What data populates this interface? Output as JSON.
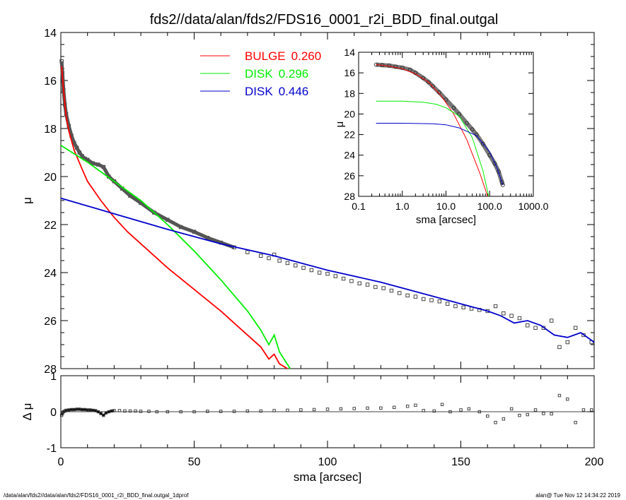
{
  "title": "fds2//data/alan/fds2/FDS16_0001_r2i_BDD_final.outgal",
  "footer": {
    "left": "/data/alan/fds2//data/alan/fds2/FDS16_0001_r2i_BDD_final.outgal_1dprof",
    "right": "alan@  Tue Nov 12 14:34:22 2019"
  },
  "colors": {
    "bulge": "#ff0000",
    "disk1": "#00ee00",
    "disk2": "#0000cc",
    "data": "#000000"
  },
  "chart_data": [
    {
      "id": "main",
      "type": "line",
      "xlabel": "sma [arcsec]",
      "ylabel": "μ",
      "xlim": [
        0,
        200
      ],
      "ylim": [
        28,
        14
      ],
      "xticks": [
        0,
        50,
        100,
        150,
        200
      ],
      "yticks": [
        14,
        16,
        18,
        20,
        22,
        24,
        26,
        28
      ],
      "legend": {
        "placement": "top-center"
      },
      "series": [
        {
          "name": "BULGE",
          "value": "0.260",
          "color": "#ff0000",
          "x": [
            0.3,
            1,
            2,
            3,
            5,
            8,
            10,
            15,
            20,
            25,
            30,
            40,
            50,
            60,
            70,
            75,
            78,
            80,
            82,
            85
          ],
          "y": [
            15.4,
            16.4,
            17.5,
            18.1,
            18.9,
            19.7,
            20.2,
            21.0,
            21.7,
            22.3,
            22.8,
            23.8,
            24.7,
            25.6,
            26.6,
            27.1,
            27.6,
            27.4,
            27.8,
            28.0
          ]
        },
        {
          "name": "DISK",
          "value": "0.296",
          "color": "#00ee00",
          "x": [
            0,
            5,
            10,
            20,
            30,
            40,
            50,
            60,
            70,
            75,
            78,
            80,
            82,
            86
          ],
          "y": [
            18.7,
            19.05,
            19.4,
            20.2,
            21.0,
            22.0,
            23.1,
            24.3,
            25.6,
            26.4,
            27.0,
            26.6,
            27.3,
            28.0
          ]
        },
        {
          "name": "DISK",
          "value": "0.446",
          "color": "#0000cc",
          "x": [
            0,
            20,
            40,
            60,
            80,
            100,
            120,
            140,
            150,
            160,
            165,
            170,
            175,
            180,
            185,
            190,
            195,
            200
          ],
          "y": [
            20.9,
            21.55,
            22.2,
            22.8,
            23.3,
            23.9,
            24.4,
            25.0,
            25.3,
            25.6,
            25.8,
            26.1,
            26.0,
            26.2,
            26.6,
            26.7,
            26.5,
            26.9
          ]
        }
      ],
      "points": {
        "x": [
          0.3,
          0.6,
          1,
          1.5,
          2,
          3,
          4,
          5,
          6,
          7,
          8,
          9,
          10,
          12,
          14,
          16,
          18,
          20,
          23,
          26,
          30,
          35,
          40,
          45,
          50,
          55,
          60,
          65,
          70,
          75,
          78,
          80,
          82,
          85,
          88,
          91,
          94,
          97,
          100,
          103,
          106,
          109,
          112,
          115,
          118,
          121,
          124,
          127,
          130,
          133,
          136,
          139,
          142,
          145,
          148,
          151,
          154,
          157,
          160,
          163,
          166,
          169,
          172,
          175,
          178,
          181,
          184,
          187,
          190,
          193,
          196,
          199
        ],
        "y": [
          15.2,
          15.7,
          16.4,
          17.0,
          17.4,
          17.9,
          18.3,
          18.6,
          18.8,
          19.0,
          19.15,
          19.25,
          19.3,
          19.45,
          19.5,
          19.6,
          20.0,
          20.2,
          20.5,
          20.8,
          21.1,
          21.5,
          21.8,
          22.1,
          22.3,
          22.55,
          22.75,
          22.95,
          23.15,
          23.3,
          23.4,
          23.25,
          23.5,
          23.6,
          23.7,
          23.8,
          23.9,
          24.0,
          24.05,
          24.15,
          24.25,
          24.35,
          24.45,
          24.5,
          24.6,
          24.65,
          24.75,
          24.85,
          24.95,
          25.0,
          25.1,
          25.15,
          25.2,
          25.3,
          25.4,
          25.45,
          25.5,
          25.55,
          25.6,
          25.4,
          25.7,
          25.8,
          25.9,
          26.2,
          26.3,
          26.3,
          26.0,
          27.1,
          26.9,
          26.3,
          26.6,
          26.9
        ]
      }
    },
    {
      "id": "inset",
      "type": "line",
      "xlabel": "sma [arcsec]",
      "ylabel": "μ",
      "xscale": "log",
      "xlim": [
        0.1,
        1000
      ],
      "ylim": [
        28,
        14
      ],
      "xticklabels": [
        "0.1",
        "1.0",
        "10.0",
        "100.0",
        "1000.0"
      ],
      "yticks": [
        14,
        16,
        18,
        20,
        22,
        24,
        26,
        28
      ],
      "series": [
        {
          "color": "#ff0000",
          "x": [
            0.25,
            0.5,
            1,
            2,
            4,
            8,
            15,
            30,
            60,
            90
          ],
          "y": [
            15.2,
            15.35,
            15.6,
            16.1,
            16.9,
            18.3,
            20.0,
            22.5,
            25.8,
            28.0
          ]
        },
        {
          "color": "#00ee00",
          "x": [
            0.25,
            1,
            3,
            6,
            10,
            20,
            40,
            70,
            95
          ],
          "y": [
            18.75,
            18.75,
            18.85,
            19.05,
            19.4,
            20.2,
            22.3,
            25.5,
            28.0
          ]
        },
        {
          "color": "#0000cc",
          "x": [
            0.25,
            1,
            5,
            10,
            20,
            50,
            100,
            150,
            200
          ],
          "y": [
            20.9,
            20.9,
            20.95,
            21.05,
            21.35,
            22.1,
            23.7,
            25.3,
            26.9
          ]
        }
      ],
      "points": {
        "x": [
          0.25,
          0.35,
          0.5,
          0.7,
          1,
          1.5,
          2,
          3,
          4,
          5,
          7,
          10,
          15,
          20,
          30,
          40,
          50,
          70,
          100,
          130,
          160,
          190,
          200
        ],
        "y": [
          15.2,
          15.25,
          15.3,
          15.4,
          15.5,
          15.7,
          16.0,
          16.5,
          16.9,
          17.3,
          17.9,
          18.6,
          19.4,
          20.0,
          20.9,
          21.5,
          22.0,
          22.9,
          24.0,
          24.8,
          25.6,
          26.6,
          26.9
        ]
      }
    },
    {
      "id": "residual",
      "type": "scatter",
      "xlabel": "sma [arcsec]",
      "ylabel": "Δ μ",
      "xlim": [
        0,
        200
      ],
      "ylim": [
        -1,
        1
      ],
      "yticks": [
        -1,
        0,
        1
      ],
      "points": {
        "x": [
          0.3,
          0.6,
          1,
          1.5,
          2,
          3,
          4,
          5,
          6,
          7,
          8,
          9,
          10,
          11,
          12,
          13,
          14,
          15,
          16,
          17,
          18,
          19,
          20,
          22,
          24,
          26,
          28,
          30,
          33,
          36,
          40,
          45,
          50,
          55,
          60,
          65,
          70,
          75,
          80,
          85,
          90,
          95,
          100,
          105,
          110,
          115,
          120,
          125,
          130,
          133,
          136,
          140,
          143,
          146,
          150,
          153,
          157,
          160,
          163,
          166,
          169,
          172,
          175,
          178,
          181,
          184,
          187,
          190,
          193,
          196,
          199
        ],
        "y": [
          -0.1,
          -0.05,
          0.0,
          0.02,
          0.04,
          0.05,
          0.06,
          0.06,
          0.07,
          0.07,
          0.06,
          0.06,
          0.05,
          0.05,
          0.04,
          0.03,
          0.0,
          -0.05,
          -0.1,
          -0.03,
          0.0,
          0.02,
          0.03,
          0.03,
          0.02,
          0.02,
          0.02,
          0.01,
          0.01,
          0.0,
          0.0,
          0.0,
          0.0,
          0.01,
          0.01,
          0.01,
          0.02,
          0.02,
          0.03,
          0.04,
          0.05,
          0.06,
          0.07,
          0.08,
          0.09,
          0.1,
          0.1,
          0.12,
          0.15,
          0.18,
          0.03,
          0.02,
          0.2,
          0.0,
          0.05,
          0.08,
          0.0,
          -0.12,
          -0.3,
          -0.2,
          0.08,
          -0.1,
          -0.08,
          0.05,
          -0.05,
          -0.06,
          0.45,
          0.35,
          -0.3,
          0.05,
          0.05
        ]
      }
    }
  ]
}
